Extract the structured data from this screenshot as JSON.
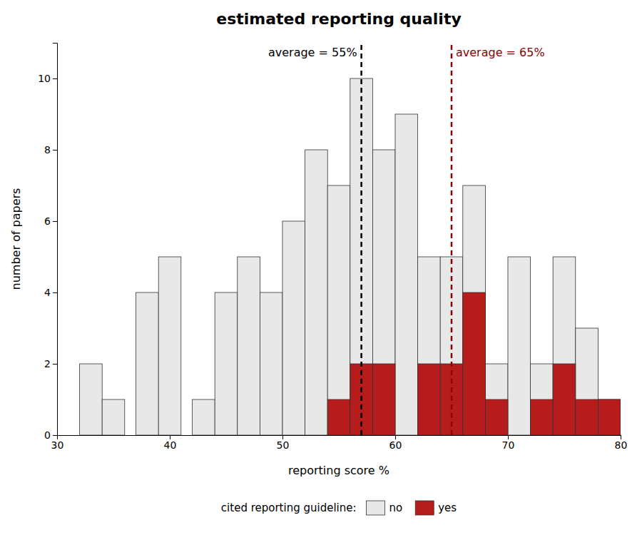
{
  "chart_data": {
    "type": "bar",
    "title": "estimated reporting quality",
    "x_label": "reporting score %",
    "y_label": "number of papers",
    "x": [
      33,
      35,
      38,
      40,
      43,
      45,
      47,
      49,
      51,
      53,
      55,
      57,
      59,
      61,
      63,
      65,
      67,
      69,
      71,
      73,
      75,
      77,
      79
    ],
    "series": [
      {
        "name": "no",
        "color": "#e8e8e8",
        "values": [
          2,
          1,
          4,
          5,
          1,
          4,
          5,
          4,
          6,
          8,
          7,
          10,
          8,
          9,
          5,
          5,
          7,
          2,
          5,
          2,
          5,
          3,
          1
        ]
      },
      {
        "name": "yes",
        "color": "#b71c1c",
        "values": [
          0,
          0,
          0,
          0,
          0,
          0,
          0,
          0,
          0,
          0,
          1,
          2,
          2,
          0,
          2,
          2,
          4,
          1,
          0,
          1,
          2,
          1,
          1
        ]
      }
    ],
    "annotations": [
      {
        "text": "average = 55%",
        "x": 57,
        "color": "#000000"
      },
      {
        "text": "average = 65%",
        "x": 65,
        "color": "#8b0000"
      }
    ],
    "xlim": [
      30,
      80
    ],
    "xticks": [
      30,
      40,
      50,
      60,
      70,
      80
    ],
    "ylim": [
      0,
      11
    ],
    "yticks": [
      0,
      2,
      4,
      6,
      8,
      10
    ],
    "grid": false,
    "legend": "bottom",
    "legend_title": "cited reporting guideline:"
  }
}
